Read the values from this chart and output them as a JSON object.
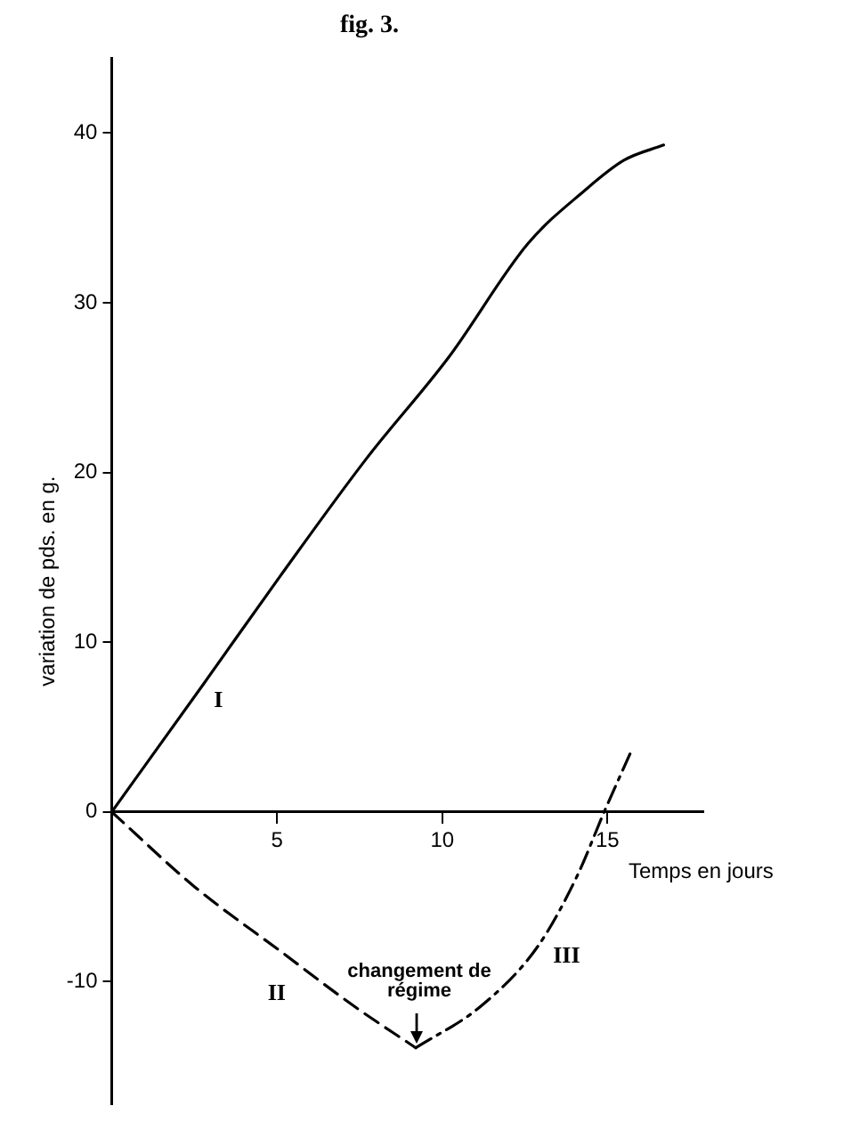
{
  "chart_data": {
    "type": "line",
    "title": "fig. 3.",
    "xlabel": "Temps en jours",
    "ylabel": "variation de pds. en g.",
    "xlim": [
      0,
      17.9
    ],
    "xticks": [
      5,
      10,
      15
    ],
    "ylim": [
      -17.2,
      44.4
    ],
    "yticks": [
      -10,
      0,
      10,
      20,
      30,
      40
    ],
    "grid": false,
    "legend": false,
    "marker": "none",
    "series": [
      {
        "name": "I",
        "color": "#000000",
        "line_style": "solid",
        "x": [
          0,
          2.8,
          5.1,
          7.7,
          10.2,
          12.6,
          14.3,
          15.5,
          16.7
        ],
        "values": [
          0,
          7.6,
          13.9,
          20.8,
          26.8,
          33.5,
          36.6,
          38.4,
          39.3
        ]
      },
      {
        "name": "II",
        "color": "#000000",
        "line_style": "dashed",
        "x": [
          0,
          2.5,
          5.1,
          7.3,
          9.2
        ],
        "values": [
          0,
          -4.4,
          -8.2,
          -11.4,
          -13.9
        ]
      },
      {
        "name": "III",
        "color": "#000000",
        "line_style": "dashdot",
        "x": [
          9.2,
          11.2,
          12.9,
          14.1,
          14.9,
          15.7
        ],
        "values": [
          -13.9,
          -11.4,
          -7.9,
          -3.7,
          0,
          3.5
        ]
      }
    ],
    "annotations": [
      {
        "text": "changement de régime",
        "x": 9.2,
        "y": -13.9
      }
    ]
  }
}
